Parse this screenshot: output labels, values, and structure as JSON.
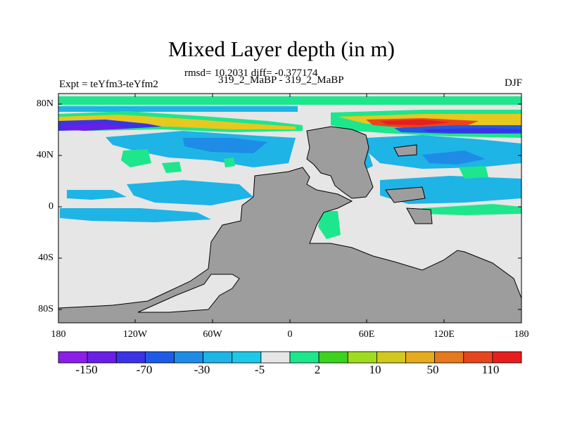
{
  "title": "Mixed Layer depth (in m)",
  "stats_line": "rmsd= 10.2031 diff= -0.377174",
  "model_line": "319_2_MaBP - 319_2_MaBP",
  "experiment": "Expt = teYfm3-teYfm2",
  "season": "DJF",
  "map": {
    "lat_labels": [
      "80N",
      "40N",
      "0",
      "40S",
      "80S"
    ],
    "lon_labels": [
      "180",
      "120W",
      "60W",
      "0",
      "60E",
      "120E",
      "180"
    ],
    "land_color": "#9d9d9d",
    "ocean_neutral_color": "#e6e6e6"
  },
  "colorbar": {
    "colors": [
      "#8a1ee6",
      "#6a1ee6",
      "#3c32e6",
      "#1e5ae6",
      "#1e8ce6",
      "#1eb4e6",
      "#1ec8e6",
      "#e6e6e6",
      "#1ee68c",
      "#3cd21e",
      "#a0dc1e",
      "#d2c81e",
      "#e6aa1e",
      "#e6781e",
      "#e6461e",
      "#e61e1e"
    ],
    "labels": [
      "-150",
      "-70",
      "-30",
      "-5",
      "2",
      "10",
      "50",
      "110"
    ]
  }
}
